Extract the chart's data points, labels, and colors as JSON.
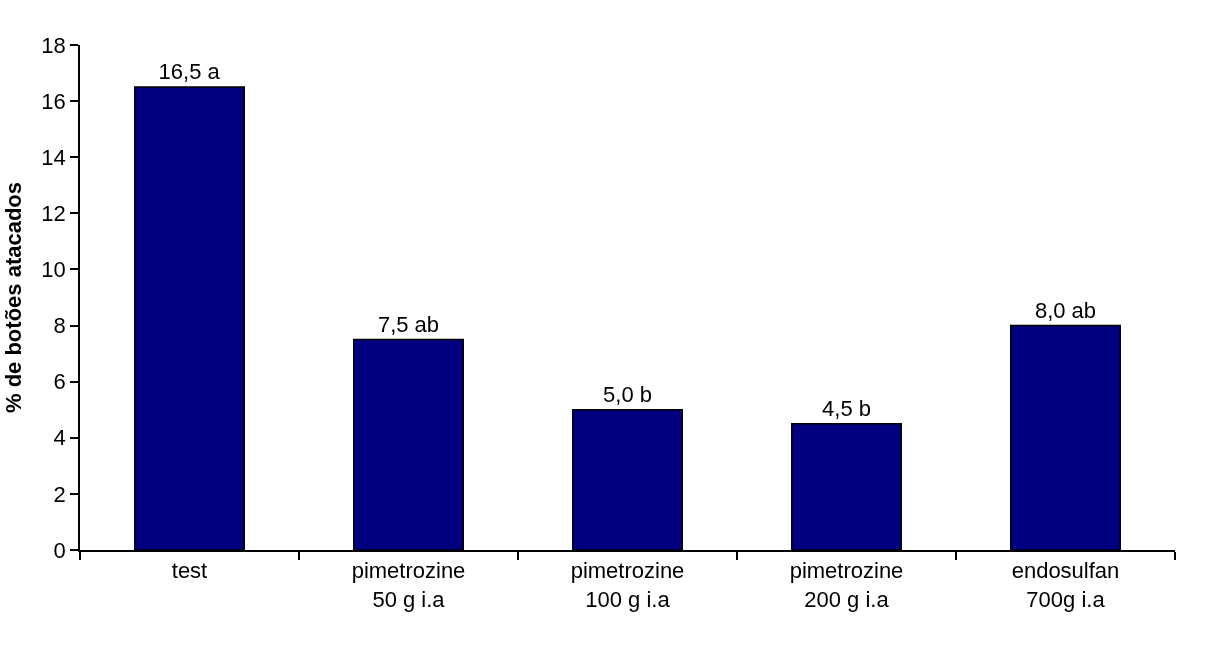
{
  "chart_data": {
    "type": "bar",
    "ylabel": "% de botões atacados",
    "categories": [
      "test",
      "pimetrozine\n50 g i.a",
      "pimetrozine\n100 g i.a",
      "pimetrozine\n200 g i.a",
      "endosulfan\n700g i.a"
    ],
    "values": [
      16.5,
      7.5,
      5.0,
      4.5,
      8.0
    ],
    "value_labels": [
      "16,5 a",
      "7,5 ab",
      "5,0 b",
      "4,5 b",
      "8,0 ab"
    ],
    "color": "#000080",
    "ylim": [
      0,
      18
    ],
    "yticks": [
      0,
      2,
      4,
      6,
      8,
      10,
      12,
      14,
      16,
      18
    ],
    "grid": false
  }
}
